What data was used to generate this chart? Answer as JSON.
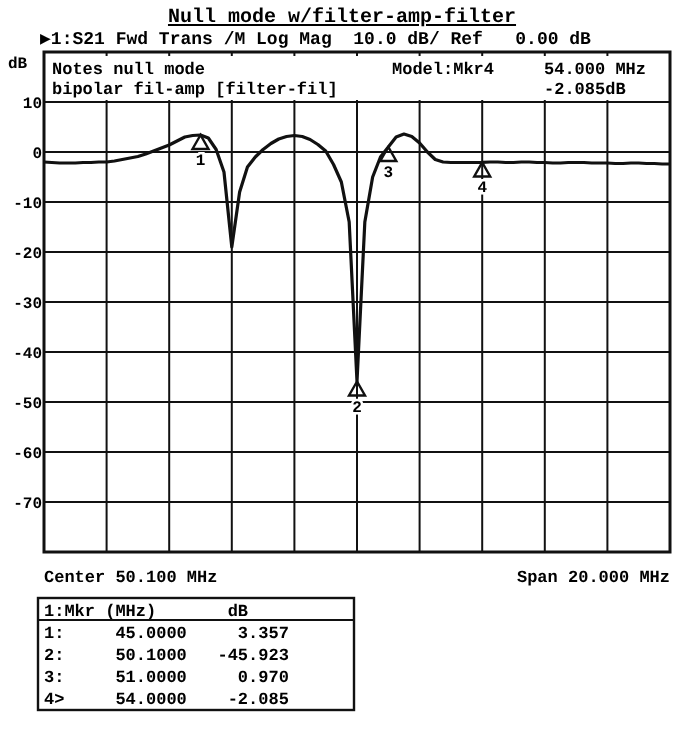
{
  "chart_data": {
    "type": "line",
    "title": "Null mode  w/filter-amp-filter",
    "subtitle": "▶1:S21 Fwd Trans /M Log Mag  10.0 dB/ Ref   0.00 dB",
    "ylabel": "dB",
    "categories": [
      null,
      null,
      null,
      null,
      null,
      null,
      null,
      null,
      null,
      null,
      null,
      null,
      null,
      null,
      null,
      null,
      null,
      null,
      null,
      null,
      null,
      null,
      null,
      null,
      null,
      null,
      null,
      null,
      null,
      null,
      null,
      null,
      null,
      null,
      null,
      null,
      null,
      null,
      null,
      null,
      null,
      null,
      null,
      null,
      null,
      null,
      null,
      null,
      null,
      null,
      null,
      null,
      null,
      null,
      null,
      null,
      null,
      null,
      null,
      null,
      null,
      null,
      null,
      null,
      null,
      null,
      null,
      null,
      null,
      null,
      null,
      null,
      null,
      null,
      null,
      null,
      null,
      null,
      null,
      null,
      null
    ],
    "series": [
      {
        "color": "#111111",
        "values": [
          -2.0,
          -2.1,
          -2.2,
          -2.2,
          -2.2,
          -2.1,
          -2.1,
          -2.0,
          -2.0,
          -1.8,
          -1.5,
          -1.2,
          -0.9,
          -0.4,
          0.2,
          0.8,
          1.4,
          2.2,
          3.0,
          3.3,
          3.4,
          2.8,
          0.5,
          -4,
          -19,
          -8,
          -3,
          -1,
          0.5,
          1.7,
          2.6,
          3.1,
          3.3,
          3.1,
          2.5,
          1.5,
          0.2,
          -2.5,
          -6,
          -14,
          -45.9,
          -14,
          -5,
          -1,
          1.0,
          3.0,
          3.6,
          3.1,
          1.8,
          0,
          -1.5,
          -2.0,
          -2.1,
          -2.1,
          -2.1,
          -2.1,
          -2.085,
          -2.0,
          -2.0,
          -2.1,
          -2.1,
          -2.0,
          -2.0,
          -2.1,
          -2.1,
          -2.2,
          -2.2,
          -2.1,
          -2.1,
          -2.1,
          -2.2,
          -2.2,
          -2.2,
          -2.3,
          -2.3,
          -2.2,
          -2.2,
          -2.3,
          -2.3,
          -2.4,
          -2.4
        ]
      }
    ],
    "ylim": [
      -80,
      20
    ],
    "yticks": [
      {
        "value": 20,
        "label": null
      },
      10,
      0,
      -10,
      -20,
      -30,
      -40,
      -50,
      -60,
      -70,
      {
        "value": -80,
        "label": null
      }
    ],
    "grid": true,
    "marker": "none",
    "line_style": "solid",
    "annotations": [
      "Notes null mode",
      "bipolar fil-amp [filter-fil]",
      "Model:Mkr4",
      "54.000 MHz",
      "-2.085dB",
      "Center 50.100 MHz",
      "Span 20.000 MHz",
      "1:Mkr (MHz)       dB",
      "1:     45.0000     3.357",
      "2:     50.1000   -45.923",
      "3:     51.0000     0.970",
      "4>     54.0000    -2.085",
      {
        "text": "1",
        "y": 3.4
      },
      {
        "text": "2",
        "y": -45.9
      },
      {
        "text": "3",
        "y": 1.0
      },
      {
        "text": "4",
        "y": -2.085
      }
    ]
  }
}
